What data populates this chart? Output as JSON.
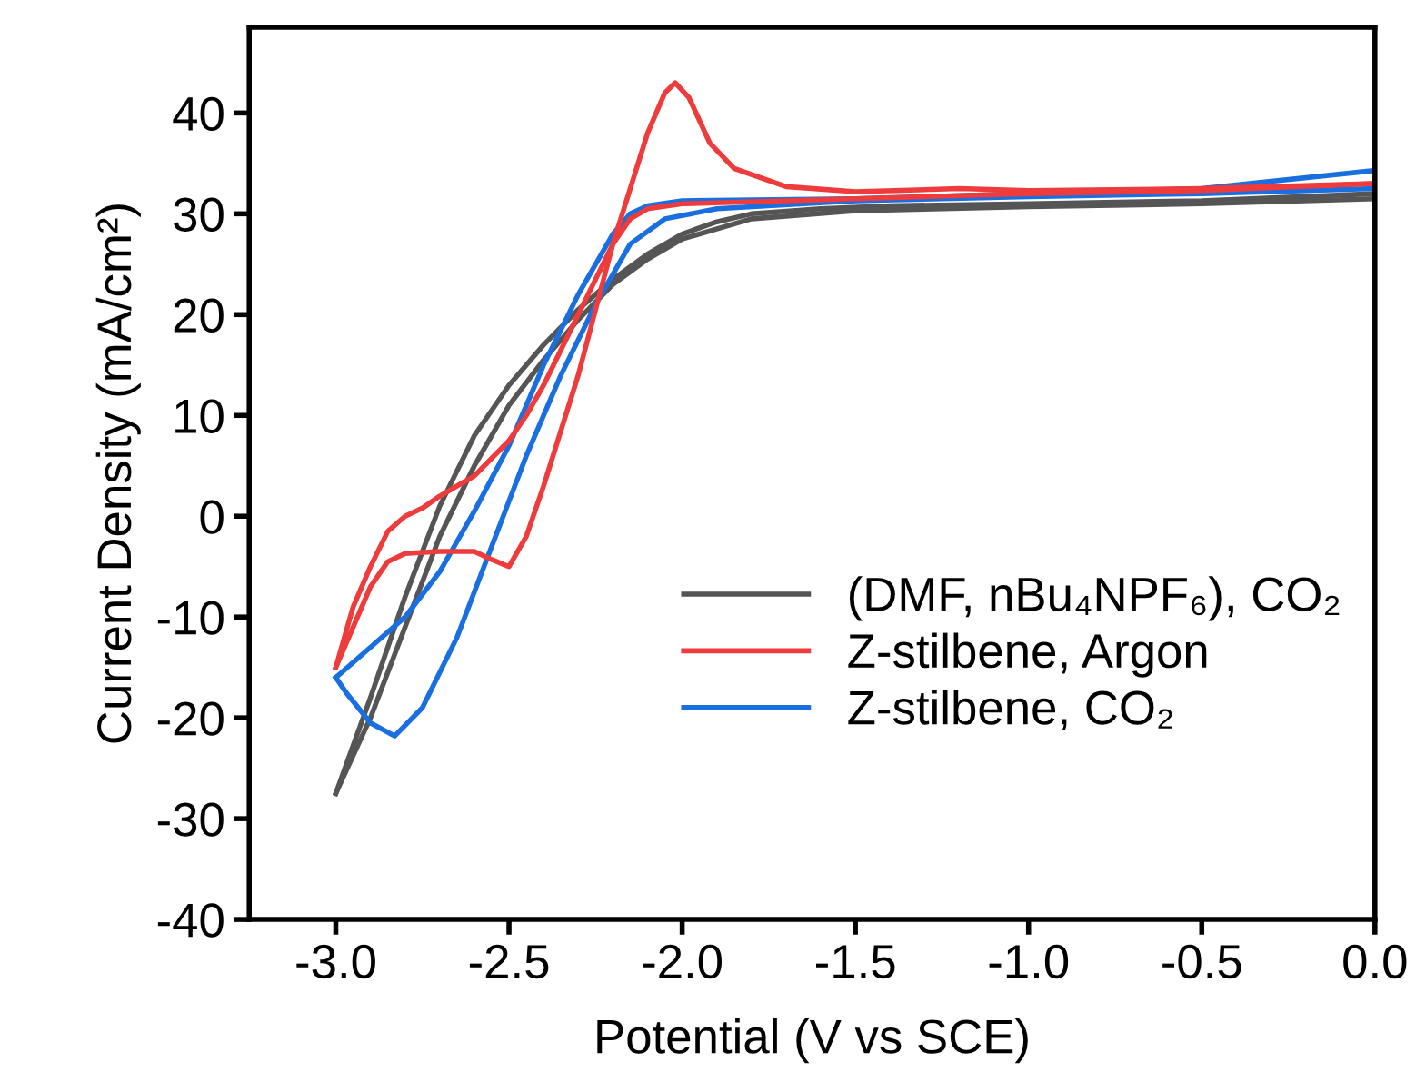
{
  "chart_data": {
    "type": "line",
    "xlabel": "Potential (V vs SCE)",
    "ylabel": "Current Density (mA/cm²)",
    "xlim": [
      -3.25,
      0.0
    ],
    "ylim": [
      -40,
      48.5
    ],
    "xticks": [
      {
        "value": -3.0,
        "label": "-3.0"
      },
      {
        "value": -2.5,
        "label": "-2.5"
      },
      {
        "value": -2.0,
        "label": "-2.0"
      },
      {
        "value": -1.5,
        "label": "-1.5"
      },
      {
        "value": -1.0,
        "label": "-1.0"
      },
      {
        "value": -0.5,
        "label": "-0.5"
      },
      {
        "value": 0.0,
        "label": "0.0"
      }
    ],
    "yticks": [
      -40,
      -30,
      -20,
      -10,
      0,
      10,
      20,
      30,
      40
    ],
    "grid": false,
    "legend": "bottom right",
    "line_style": "solid",
    "marker": "none",
    "series": [
      {
        "name": "(DMF, nBu₄NPF₆), CO₂",
        "color": "#555555",
        "x": [
          -3.0,
          -2.9,
          -2.8,
          -2.7,
          -2.6,
          -2.5,
          -2.4,
          -2.3,
          -2.2,
          -2.1,
          -2.0,
          -1.9,
          -1.8,
          -1.6,
          -1.4,
          -1.0,
          -0.5,
          0.0
        ],
        "values": [
          -27.5,
          -18.0,
          -8.0,
          1.0,
          8.0,
          13.0,
          17.0,
          20.5,
          23.5,
          26.0,
          28.0,
          29.2,
          30.0,
          30.5,
          30.8,
          31.0,
          31.3,
          32.0
        ]
      },
      {
        "color": "#555555",
        "x": [
          -3.0,
          -2.9,
          -2.8,
          -2.7,
          -2.6,
          -2.5,
          -2.4,
          -2.3,
          -2.2,
          -2.1,
          -2.0,
          -1.8,
          -1.5,
          -1.0,
          -0.5,
          0.0
        ],
        "values": [
          -27.5,
          -20.0,
          -11.0,
          -2.0,
          5.0,
          11.0,
          15.5,
          19.5,
          23.0,
          25.5,
          27.5,
          29.5,
          30.3,
          30.7,
          31.0,
          31.5
        ]
      },
      {
        "name": "Z-stilbene, CO₂",
        "color": "#1a6fe0",
        "x": [
          -3.0,
          -2.9,
          -2.8,
          -2.7,
          -2.6,
          -2.5,
          -2.4,
          -2.3,
          -2.2,
          -2.15,
          -2.1,
          -2.0,
          -1.5,
          -1.0,
          -0.5,
          0.0
        ],
        "values": [
          -16.0,
          -13.0,
          -10.0,
          -5.5,
          0.5,
          7.0,
          15.0,
          22.0,
          28.0,
          30.0,
          30.8,
          31.3,
          31.5,
          32.0,
          32.5,
          34.3
        ]
      },
      {
        "color": "#1a6fe0",
        "x": [
          -3.0,
          -2.97,
          -2.9,
          -2.83,
          -2.75,
          -2.65,
          -2.55,
          -2.45,
          -2.35,
          -2.25,
          -2.15,
          -2.05,
          -1.9,
          -1.5,
          -1.0,
          -0.5,
          0.0
        ],
        "values": [
          -16.0,
          -17.5,
          -20.5,
          -21.8,
          -19.0,
          -12.0,
          -3.0,
          6.0,
          14.0,
          21.0,
          27.0,
          29.5,
          30.5,
          31.3,
          31.7,
          32.0,
          32.5
        ]
      },
      {
        "name": "Z-stilbene, Argon",
        "color": "#ee3b3b",
        "x": [
          -3.0,
          -2.95,
          -2.9,
          -2.85,
          -2.8,
          -2.75,
          -2.7,
          -2.6,
          -2.5,
          -2.45,
          -2.4,
          -2.3,
          -2.2,
          -2.15,
          -2.1,
          -2.0,
          -1.5,
          -1.0,
          -0.5,
          0.0
        ],
        "values": [
          -15.0,
          -9.0,
          -5.0,
          -1.5,
          0.0,
          0.8,
          2.0,
          4.0,
          7.5,
          10.0,
          13.0,
          20.0,
          27.0,
          29.5,
          30.5,
          31.0,
          31.5,
          32.0,
          32.3,
          33.0
        ]
      },
      {
        "color": "#ee3b3b",
        "x": [
          -3.0,
          -2.95,
          -2.9,
          -2.85,
          -2.8,
          -2.7,
          -2.6,
          -2.55,
          -2.5,
          -2.45,
          -2.4,
          -2.3,
          -2.2,
          -2.1,
          -2.05,
          -2.02,
          -1.98,
          -1.92,
          -1.85,
          -1.7,
          -1.5,
          -1.2,
          -1.0,
          -0.5,
          0.0
        ],
        "values": [
          -15.0,
          -11.0,
          -7.0,
          -4.5,
          -3.7,
          -3.5,
          -3.5,
          -4.3,
          -5.0,
          -2.0,
          3.0,
          14.0,
          27.0,
          38.0,
          42.0,
          43.0,
          41.5,
          37.0,
          34.5,
          32.7,
          32.2,
          32.5,
          32.3,
          32.5,
          33.0
        ]
      }
    ]
  }
}
